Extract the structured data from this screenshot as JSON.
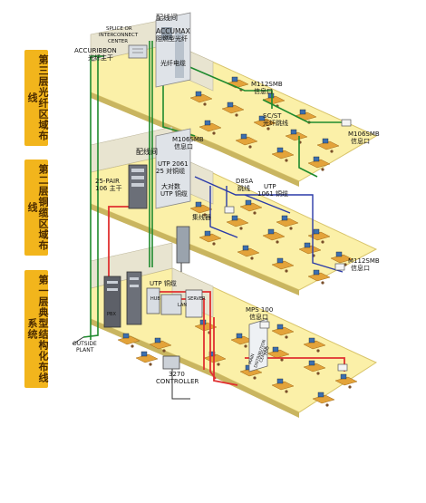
{
  "side_labels": {
    "floor3": "第三层光纤区域布线",
    "floor2": "第二层铜缆区域布线",
    "floor1": "第一层典型结构化布线系统"
  },
  "callouts": {
    "wiring_closet_3": "配线间",
    "splice_center_1": "SPLICE OR",
    "splice_center_2": "INTERCONNECT",
    "splice_center_3": "CENTER",
    "accumax_1": "ACCUMAX",
    "accumax_2": "阻燃型光纤",
    "accuribbon_1": "ACCURIBBON",
    "accuribbon_2": "光纤主干",
    "fiber_cable": "光纤电缆",
    "m112smb_top_1": "M112SMB",
    "m112smb_top_2": "信息口",
    "scst_1": "SC/ST",
    "scst_2": "光纤跳线",
    "m106smb_right_1": "M106SMB",
    "m106smb_right_2": "信息口",
    "m106smb_mid_1": "M106SMB",
    "m106smb_mid_2": "信息口",
    "wiring_closet_2": "配线间",
    "utp2061_1": "UTP 2061",
    "utp2061_2": "25 对铜缆",
    "pair25_1": "25-PAIR",
    "pair25_2": "106 主干",
    "large_pair_1": "大对数",
    "large_pair_2": "UTP 铜缆",
    "d8sa_1": "D8SA",
    "d8sa_2": "跳线",
    "utp1061_1": "UTP",
    "utp1061_2": "1061 铜缆",
    "hub": "集线器",
    "m112smb_low_1": "M112SMB",
    "m112smb_low_2": "信息口",
    "utp_copper": "UTP 铜缆",
    "hub_small": "HUB",
    "server": "SERVER",
    "lan": "LAN",
    "pbx": "PBX",
    "mps100_1": "MPS 100",
    "mps100_2": "信息口",
    "outside_1": "OUTSIDE",
    "outside_2": "PLANT",
    "controller_1": "3270",
    "controller_2": "CONTROLLER",
    "mdc_1": "MAIN",
    "mdc_2": "DISTRIBUTION",
    "mdc_3": "CENTER",
    "mdc_4": "PDO"
  },
  "colors": {
    "floor": "#fbf0a8",
    "floor_edge": "#d8c46a",
    "wall": "#e8e4d0",
    "desk": "#e3a33a",
    "cable_green": "#1e8a2e",
    "cable_red": "#e03030",
    "cable_blue": "#2a3aa8",
    "side_label_bg": "#f2b51c"
  }
}
